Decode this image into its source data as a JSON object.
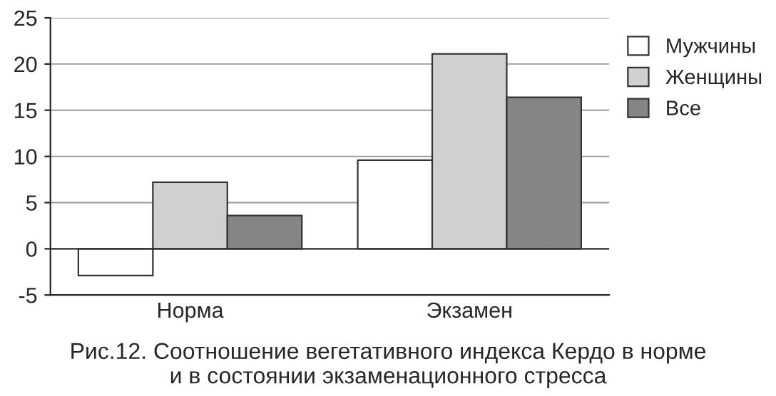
{
  "chart_data": {
    "type": "bar",
    "categories": [
      "Норма",
      "Экзамен"
    ],
    "series": [
      {
        "name": "Мужчины",
        "color": "#ffffff",
        "values": [
          -2.9,
          9.6
        ]
      },
      {
        "name": "Женщины",
        "color": "#d0d0d0",
        "values": [
          7.2,
          21.1
        ]
      },
      {
        "name": "Все",
        "color": "#858585",
        "values": [
          3.6,
          16.4
        ]
      }
    ],
    "ylim": [
      -5,
      25
    ],
    "yticks": [
      -5,
      0,
      5,
      10,
      15,
      20,
      25
    ],
    "grid": "y",
    "legend": "top right",
    "annotations": [
      "Рис.12. Соотношение вегетативного индекса Кердо в норме\nи в состоянии экзаменационного стресса"
    ]
  }
}
